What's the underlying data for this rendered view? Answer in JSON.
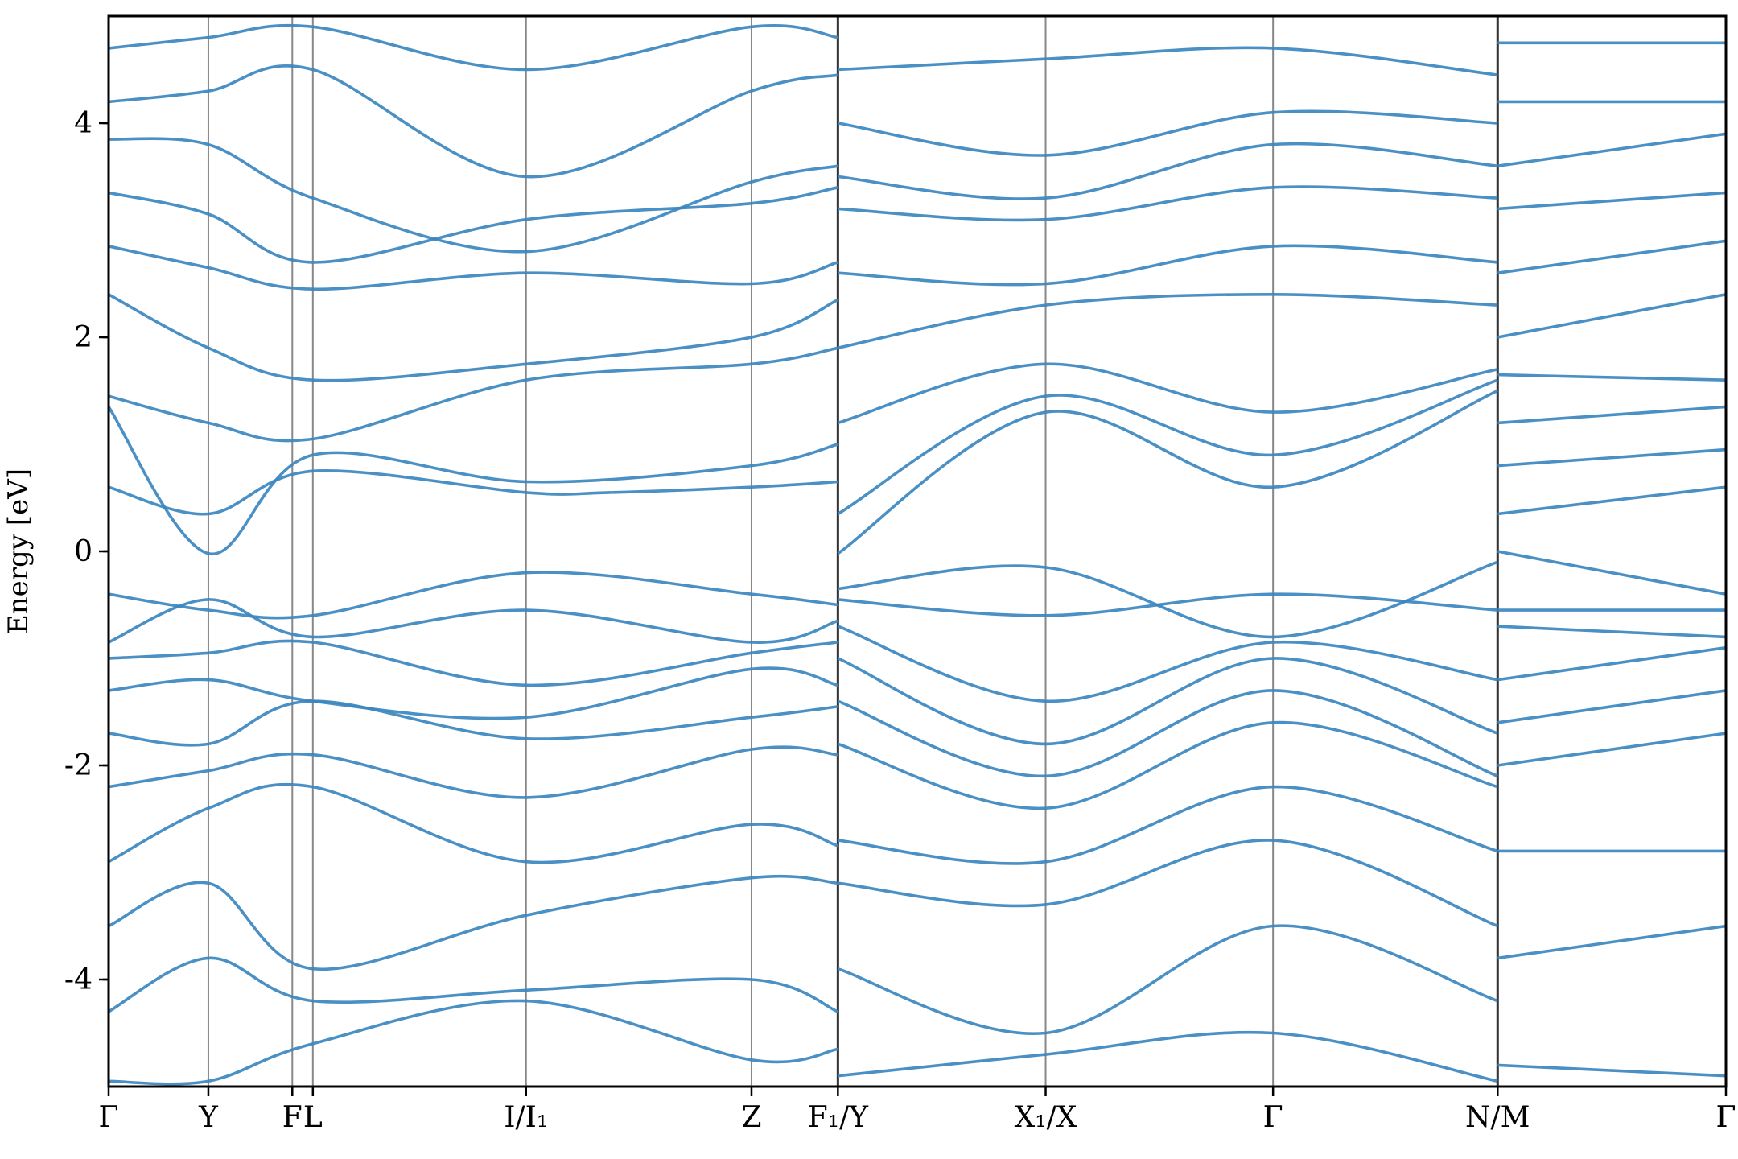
{
  "chart_data": {
    "type": "line",
    "title": "",
    "ylabel": "Energy [eV]",
    "xlabel": "",
    "ylim": [
      -5,
      5
    ],
    "yticks": [
      -4,
      -2,
      0,
      2,
      4
    ],
    "ytick_labels": [
      "-4",
      "-2",
      "0",
      "2",
      "4"
    ],
    "grid": false,
    "legend": "none",
    "band_color": "#3b87bf",
    "kpoint_labels": [
      "Γ",
      "Y",
      "F",
      "L",
      "I/I₁",
      "Z",
      "F₁/Y",
      "X₁/X",
      "Γ",
      "N/M",
      "Γ"
    ],
    "kpoint_positions": [
      0.0,
      0.568,
      1.046,
      1.163,
      2.377,
      3.661,
      4.153,
      5.336,
      6.631,
      7.91,
      9.21
    ],
    "path_breaks": [
      4.153,
      7.91
    ],
    "series": [
      {
        "x": [
          0.0,
          0.568,
          1.163,
          2.377,
          3.661,
          4.153
        ],
        "y": [
          -4.95,
          -4.95,
          -4.6,
          -4.2,
          -4.75,
          -4.65
        ]
      },
      {
        "x": [
          0.0,
          0.568,
          1.163,
          2.377,
          3.661,
          4.153
        ],
        "y": [
          -4.3,
          -3.8,
          -4.2,
          -4.1,
          -4.0,
          -4.3
        ]
      },
      {
        "x": [
          0.0,
          0.568,
          1.163,
          2.377,
          3.661,
          4.153
        ],
        "y": [
          -3.5,
          -3.1,
          -3.9,
          -3.4,
          -3.05,
          -3.1
        ]
      },
      {
        "x": [
          0.0,
          0.568,
          1.163,
          2.377,
          3.661,
          4.153
        ],
        "y": [
          -2.9,
          -2.4,
          -2.2,
          -2.9,
          -2.55,
          -2.75
        ]
      },
      {
        "x": [
          0.0,
          0.568,
          1.163,
          2.377,
          3.661,
          4.153
        ],
        "y": [
          -2.2,
          -2.05,
          -1.9,
          -2.3,
          -1.85,
          -1.9
        ]
      },
      {
        "x": [
          0.0,
          0.568,
          1.163,
          2.377,
          3.661,
          4.153
        ],
        "y": [
          -1.7,
          -1.8,
          -1.4,
          -1.75,
          -1.55,
          -1.45
        ]
      },
      {
        "x": [
          0.0,
          0.568,
          1.163,
          2.377,
          3.661,
          4.153
        ],
        "y": [
          -1.3,
          -1.2,
          -1.4,
          -1.55,
          -1.1,
          -1.25
        ]
      },
      {
        "x": [
          0.0,
          0.568,
          1.163,
          2.377,
          3.661,
          4.153
        ],
        "y": [
          -1.0,
          -0.95,
          -0.85,
          -1.25,
          -0.95,
          -0.85
        ]
      },
      {
        "x": [
          0.0,
          0.568,
          1.163,
          2.377,
          3.661,
          4.153
        ],
        "y": [
          -0.85,
          -0.45,
          -0.8,
          -0.55,
          -0.85,
          -0.65
        ]
      },
      {
        "x": [
          0.0,
          0.568,
          1.163,
          2.377,
          3.661,
          4.153
        ],
        "y": [
          -0.4,
          -0.55,
          -0.6,
          -0.2,
          -0.4,
          -0.5
        ]
      },
      {
        "x": [
          0.0,
          0.568,
          1.163,
          2.377,
          2.85,
          3.661,
          4.153
        ],
        "y": [
          0.6,
          0.35,
          0.75,
          0.55,
          0.55,
          0.6,
          0.65
        ]
      },
      {
        "x": [
          0.0,
          0.568,
          1.163,
          2.377,
          3.661,
          4.153
        ],
        "y": [
          1.35,
          -0.02,
          0.9,
          0.65,
          0.8,
          1.0
        ]
      },
      {
        "x": [
          0.0,
          0.568,
          1.163,
          2.377,
          3.661,
          4.153
        ],
        "y": [
          1.45,
          1.2,
          1.05,
          1.6,
          1.75,
          1.9
        ]
      },
      {
        "x": [
          0.0,
          0.568,
          1.163,
          2.377,
          3.661,
          4.153
        ],
        "y": [
          2.4,
          1.9,
          1.6,
          1.75,
          2.0,
          2.35
        ]
      },
      {
        "x": [
          0.0,
          0.568,
          1.163,
          2.377,
          3.661,
          4.153
        ],
        "y": [
          2.85,
          2.65,
          2.45,
          2.6,
          2.5,
          2.7
        ]
      },
      {
        "x": [
          0.0,
          0.568,
          1.163,
          2.377,
          3.661,
          4.153
        ],
        "y": [
          3.35,
          3.15,
          2.7,
          3.1,
          3.25,
          3.4
        ]
      },
      {
        "x": [
          0.0,
          0.568,
          1.163,
          2.377,
          3.661,
          4.153
        ],
        "y": [
          3.85,
          3.8,
          3.3,
          2.8,
          3.45,
          3.6
        ]
      },
      {
        "x": [
          0.0,
          0.568,
          1.163,
          2.377,
          3.661,
          4.153
        ],
        "y": [
          4.2,
          4.3,
          4.5,
          3.5,
          4.3,
          4.45
        ]
      },
      {
        "x": [
          0.0,
          0.568,
          1.163,
          2.377,
          3.661,
          4.153
        ],
        "y": [
          4.7,
          4.8,
          4.9,
          4.5,
          4.9,
          4.8
        ]
      },
      {
        "x": [
          4.153,
          5.336,
          6.631,
          7.91
        ],
        "y": [
          -4.9,
          -4.7,
          -4.5,
          -4.95
        ]
      },
      {
        "x": [
          4.153,
          5.336,
          6.631,
          7.91
        ],
        "y": [
          -3.9,
          -4.5,
          -3.5,
          -4.2
        ]
      },
      {
        "x": [
          4.153,
          5.336,
          6.631,
          7.91
        ],
        "y": [
          -3.1,
          -3.3,
          -2.7,
          -3.5
        ]
      },
      {
        "x": [
          4.153,
          5.336,
          6.631,
          7.91
        ],
        "y": [
          -2.7,
          -2.9,
          -2.2,
          -2.8
        ]
      },
      {
        "x": [
          4.153,
          5.336,
          6.631,
          7.91
        ],
        "y": [
          -1.8,
          -2.4,
          -1.6,
          -2.2
        ]
      },
      {
        "x": [
          4.153,
          5.336,
          6.631,
          7.91
        ],
        "y": [
          -1.4,
          -2.1,
          -1.3,
          -2.1
        ]
      },
      {
        "x": [
          4.153,
          5.336,
          6.631,
          7.91
        ],
        "y": [
          -1.0,
          -1.8,
          -1.0,
          -1.7
        ]
      },
      {
        "x": [
          4.153,
          5.336,
          6.631,
          7.91
        ],
        "y": [
          -0.7,
          -1.4,
          -0.85,
          -1.2
        ]
      },
      {
        "x": [
          4.153,
          5.336,
          6.631,
          7.91
        ],
        "y": [
          -0.45,
          -0.6,
          -0.4,
          -0.55
        ]
      },
      {
        "x": [
          4.153,
          5.336,
          6.631,
          7.91
        ],
        "y": [
          -0.35,
          -0.15,
          -0.8,
          -0.1
        ]
      },
      {
        "x": [
          4.153,
          5.336,
          6.631,
          7.91
        ],
        "y": [
          -0.02,
          1.3,
          0.6,
          1.5
        ]
      },
      {
        "x": [
          4.153,
          5.336,
          6.631,
          7.91
        ],
        "y": [
          0.35,
          1.45,
          0.9,
          1.6
        ]
      },
      {
        "x": [
          4.153,
          5.336,
          6.631,
          7.91
        ],
        "y": [
          1.2,
          1.75,
          1.3,
          1.7
        ]
      },
      {
        "x": [
          4.153,
          5.336,
          6.631,
          7.91
        ],
        "y": [
          1.9,
          2.3,
          2.4,
          2.3
        ]
      },
      {
        "x": [
          4.153,
          5.336,
          6.631,
          7.91
        ],
        "y": [
          2.6,
          2.5,
          2.85,
          2.7
        ]
      },
      {
        "x": [
          4.153,
          5.336,
          6.631,
          7.91
        ],
        "y": [
          3.2,
          3.1,
          3.4,
          3.3
        ]
      },
      {
        "x": [
          4.153,
          5.336,
          6.631,
          7.91
        ],
        "y": [
          3.5,
          3.3,
          3.8,
          3.6
        ]
      },
      {
        "x": [
          4.153,
          5.336,
          6.631,
          7.91
        ],
        "y": [
          4.0,
          3.7,
          4.1,
          4.0
        ]
      },
      {
        "x": [
          4.153,
          5.336,
          6.631,
          7.91
        ],
        "y": [
          4.5,
          4.6,
          4.7,
          4.45
        ]
      },
      {
        "x": [
          7.91,
          9.21
        ],
        "y": [
          -4.8,
          -4.9
        ]
      },
      {
        "x": [
          7.91,
          9.21
        ],
        "y": [
          -3.8,
          -3.5
        ]
      },
      {
        "x": [
          7.91,
          9.21
        ],
        "y": [
          -2.8,
          -2.8
        ]
      },
      {
        "x": [
          7.91,
          9.21
        ],
        "y": [
          -2.0,
          -1.7
        ]
      },
      {
        "x": [
          7.91,
          9.21
        ],
        "y": [
          -1.6,
          -1.3
        ]
      },
      {
        "x": [
          7.91,
          9.21
        ],
        "y": [
          -1.2,
          -0.9
        ]
      },
      {
        "x": [
          7.91,
          9.21
        ],
        "y": [
          -0.7,
          -0.8
        ]
      },
      {
        "x": [
          7.91,
          9.21
        ],
        "y": [
          -0.55,
          -0.55
        ]
      },
      {
        "x": [
          7.91,
          9.21
        ],
        "y": [
          0.0,
          -0.4
        ]
      },
      {
        "x": [
          7.91,
          9.21
        ],
        "y": [
          0.35,
          0.6
        ]
      },
      {
        "x": [
          7.91,
          9.21
        ],
        "y": [
          0.8,
          0.95
        ]
      },
      {
        "x": [
          7.91,
          9.21
        ],
        "y": [
          1.2,
          1.35
        ]
      },
      {
        "x": [
          7.91,
          9.21
        ],
        "y": [
          1.65,
          1.6
        ]
      },
      {
        "x": [
          7.91,
          9.21
        ],
        "y": [
          2.0,
          2.4
        ]
      },
      {
        "x": [
          7.91,
          9.21
        ],
        "y": [
          2.6,
          2.9
        ]
      },
      {
        "x": [
          7.91,
          9.21
        ],
        "y": [
          3.2,
          3.35
        ]
      },
      {
        "x": [
          7.91,
          9.21
        ],
        "y": [
          3.6,
          3.9
        ]
      },
      {
        "x": [
          7.91,
          9.21
        ],
        "y": [
          4.2,
          4.2
        ]
      },
      {
        "x": [
          7.91,
          9.21
        ],
        "y": [
          4.75,
          4.75
        ]
      }
    ]
  }
}
